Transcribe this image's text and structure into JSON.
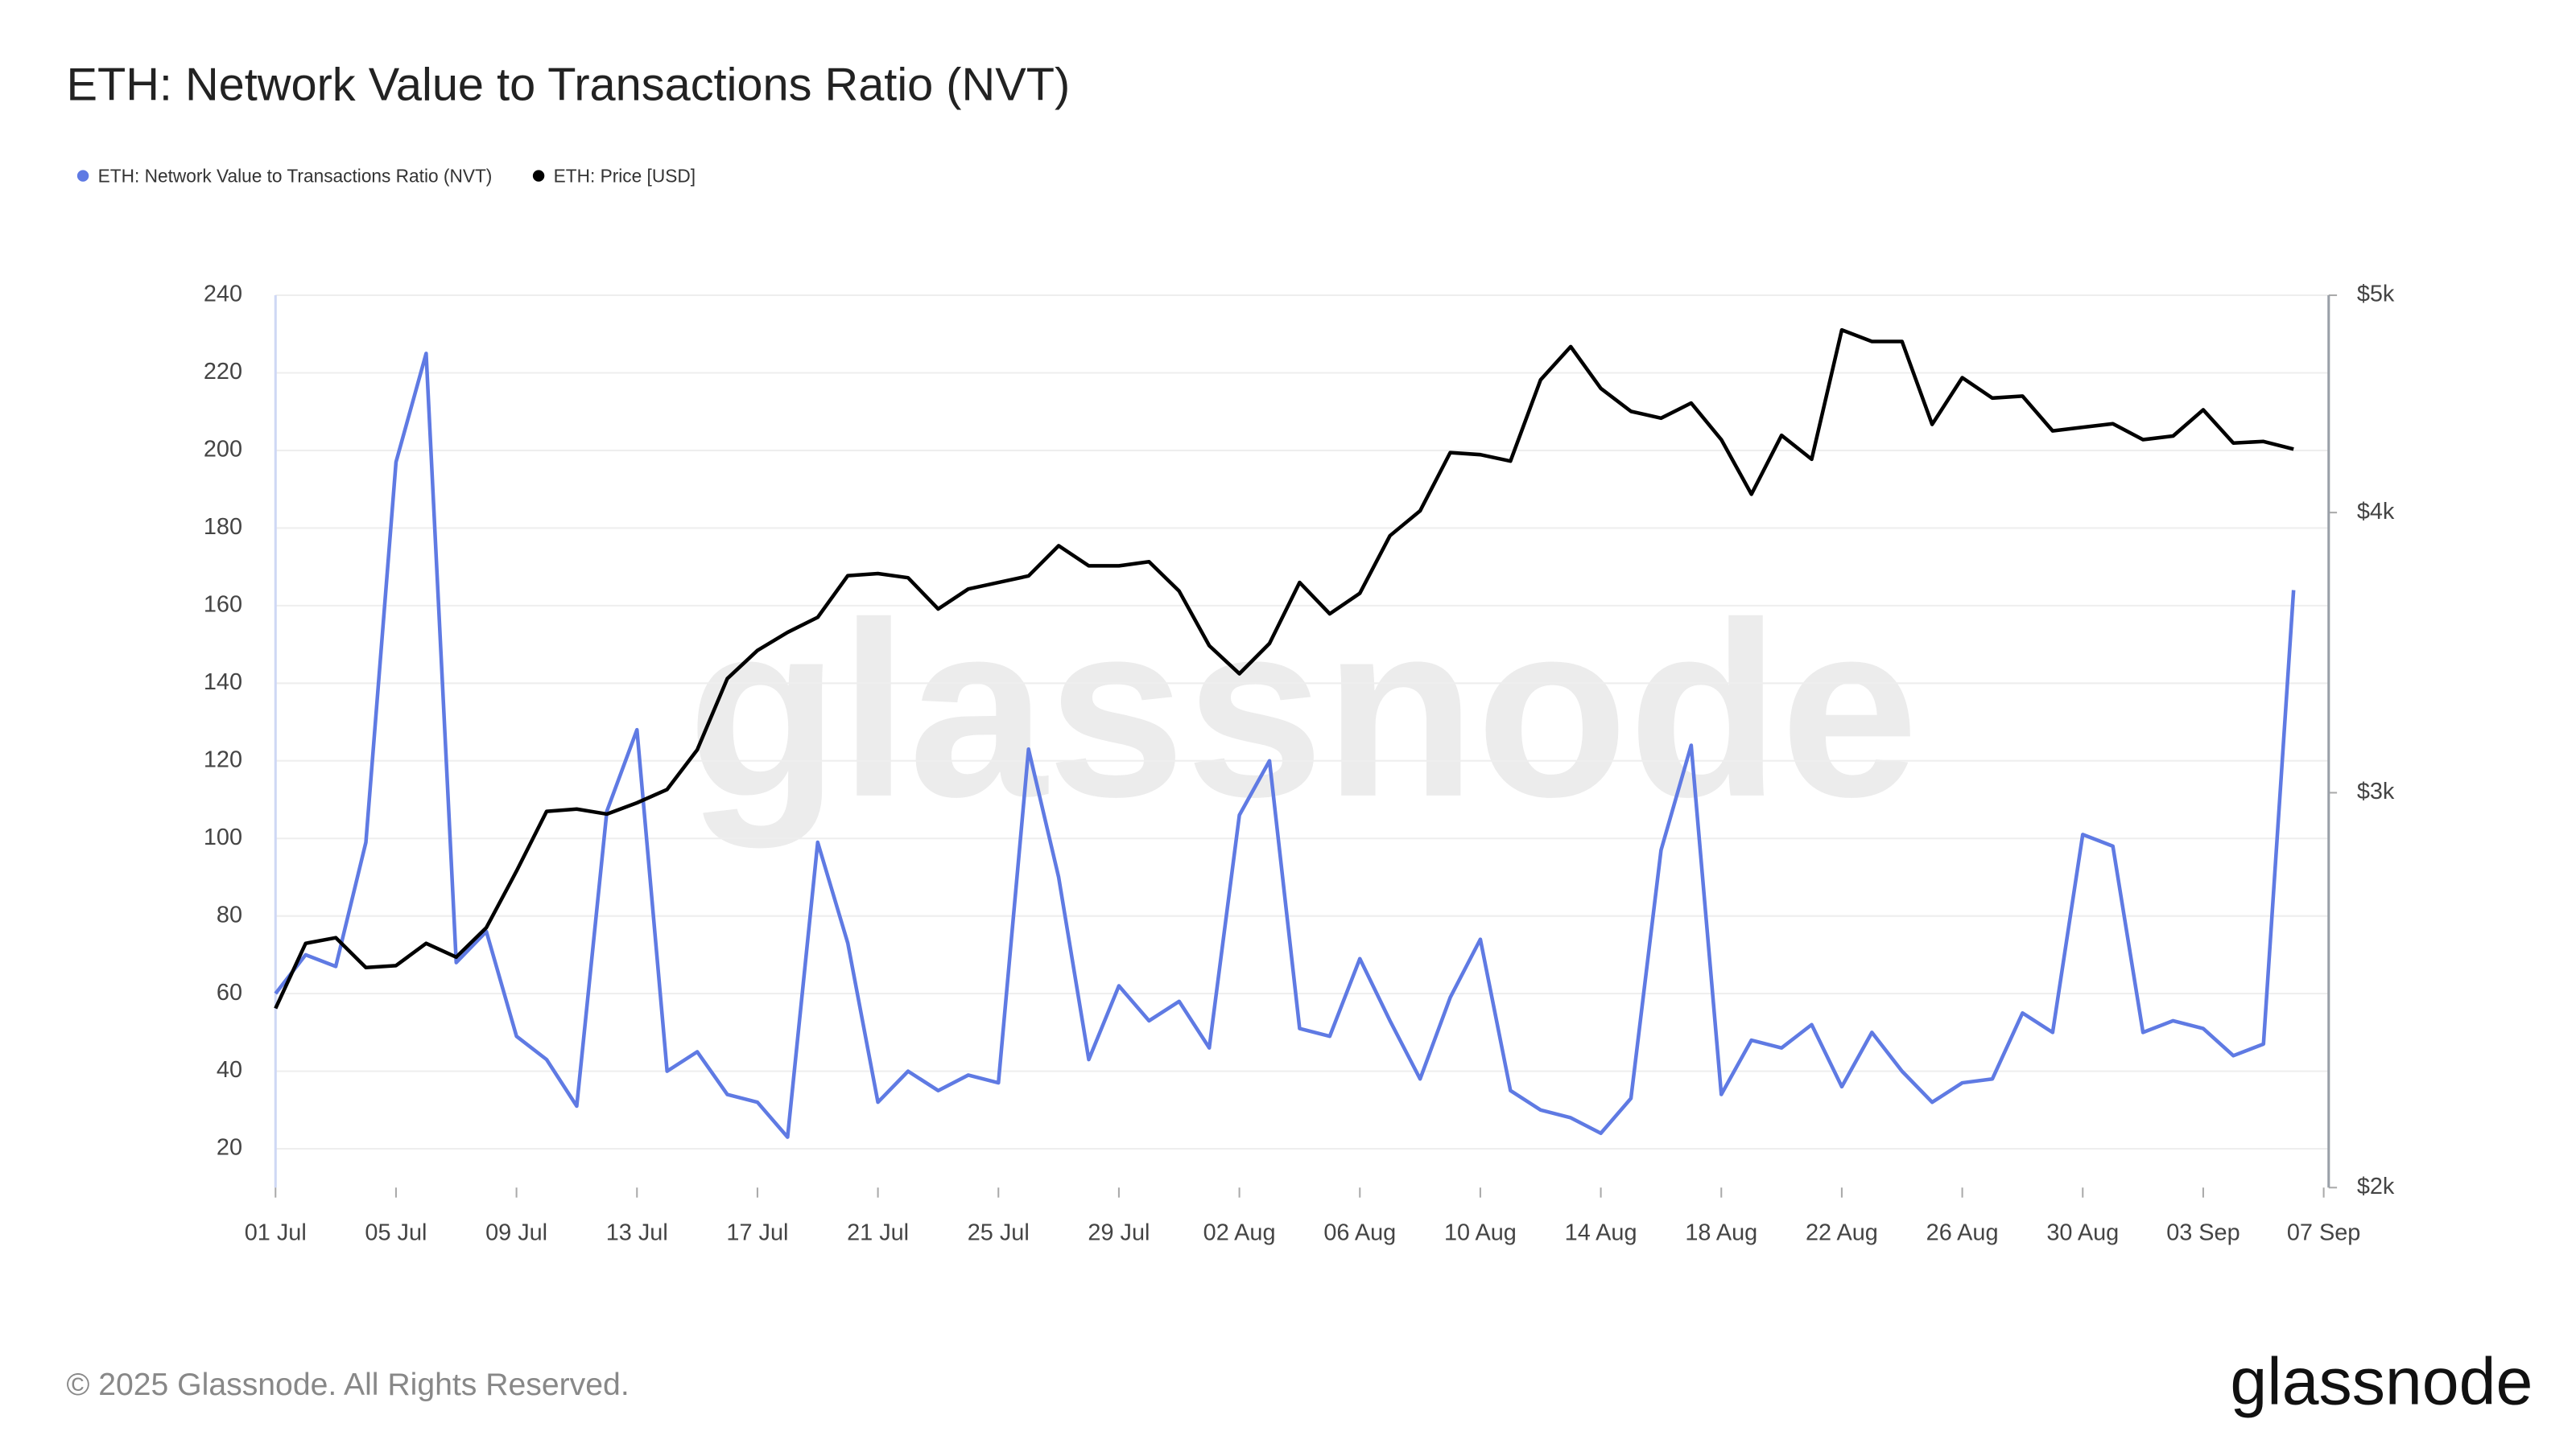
{
  "chart_data": {
    "type": "line",
    "title": "ETH: Network Value to Transactions Ratio (NVT)",
    "watermark": "glassnode",
    "x": [
      "01 Jul",
      "02 Jul",
      "03 Jul",
      "04 Jul",
      "05 Jul",
      "06 Jul",
      "07 Jul",
      "08 Jul",
      "09 Jul",
      "10 Jul",
      "11 Jul",
      "12 Jul",
      "13 Jul",
      "14 Jul",
      "15 Jul",
      "16 Jul",
      "17 Jul",
      "18 Jul",
      "19 Jul",
      "20 Jul",
      "21 Jul",
      "22 Jul",
      "23 Jul",
      "24 Jul",
      "25 Jul",
      "26 Jul",
      "27 Jul",
      "28 Jul",
      "29 Jul",
      "30 Jul",
      "31 Jul",
      "01 Aug",
      "02 Aug",
      "03 Aug",
      "04 Aug",
      "05 Aug",
      "06 Aug",
      "07 Aug",
      "08 Aug",
      "09 Aug",
      "10 Aug",
      "11 Aug",
      "12 Aug",
      "13 Aug",
      "14 Aug",
      "15 Aug",
      "16 Aug",
      "17 Aug",
      "18 Aug",
      "19 Aug",
      "20 Aug",
      "21 Aug",
      "22 Aug",
      "23 Aug",
      "24 Aug",
      "25 Aug",
      "26 Aug",
      "27 Aug",
      "28 Aug",
      "29 Aug",
      "30 Aug",
      "31 Aug",
      "01 Sep",
      "02 Sep",
      "03 Sep",
      "04 Sep",
      "05 Sep",
      "06 Sep",
      "07 Sep"
    ],
    "xticks": [
      "01 Jul",
      "05 Jul",
      "09 Jul",
      "13 Jul",
      "17 Jul",
      "21 Jul",
      "25 Jul",
      "29 Jul",
      "02 Aug",
      "06 Aug",
      "10 Aug",
      "14 Aug",
      "18 Aug",
      "22 Aug",
      "26 Aug",
      "30 Aug",
      "03 Sep",
      "07 Sep"
    ],
    "ylim": [
      10,
      240
    ],
    "yticks": [
      20,
      40,
      60,
      80,
      100,
      120,
      140,
      160,
      180,
      200,
      220,
      240
    ],
    "y2lim": [
      2000,
      5000
    ],
    "y2scale": "log",
    "y2ticks": [
      {
        "value": 2000,
        "label": "$2k"
      },
      {
        "value": 3000,
        "label": "$3k"
      },
      {
        "value": 4000,
        "label": "$4k"
      },
      {
        "value": 5000,
        "label": "$5k"
      }
    ],
    "grid": true,
    "legend": "top-left",
    "series": [
      {
        "name": "ETH: Network Value to Transactions Ratio (NVT)",
        "color": "#5f7ae3",
        "axis": "y",
        "values": [
          60,
          70,
          67,
          99,
          197,
          225,
          68,
          76,
          49,
          43,
          31,
          107,
          128,
          40,
          45,
          34,
          32,
          23,
          99,
          73,
          32,
          40,
          35,
          39,
          37,
          123,
          90,
          43,
          62,
          53,
          58,
          46,
          106,
          120,
          51,
          49,
          69,
          53,
          38,
          59,
          74,
          35,
          30,
          28,
          24,
          33,
          97,
          124,
          34,
          48,
          46,
          52,
          36,
          50,
          40,
          32,
          37,
          38,
          55,
          50,
          101,
          98,
          50,
          53,
          51,
          44,
          47,
          164,
          null
        ]
      },
      {
        "name": "ETH: Price [USD]",
        "color": "#000000",
        "axis": "y2",
        "values": [
          2404,
          2570,
          2585,
          2507,
          2512,
          2570,
          2534,
          2612,
          2768,
          2943,
          2950,
          2935,
          2969,
          3010,
          3135,
          3373,
          3472,
          3537,
          3592,
          3749,
          3757,
          3741,
          3623,
          3698,
          3723,
          3748,
          3866,
          3787,
          3787,
          3803,
          3690,
          3489,
          3390,
          3497,
          3723,
          3605,
          3682,
          3906,
          4007,
          4254,
          4245,
          4217,
          4584,
          4743,
          4544,
          4438,
          4407,
          4476,
          4311,
          4076,
          4330,
          4225,
          4825,
          4768,
          4768,
          4379,
          4594,
          4499,
          4508,
          4350,
          4366,
          4382,
          4311,
          4327,
          4445,
          4296,
          4303,
          4269,
          null
        ]
      }
    ]
  },
  "footer": {
    "copyright": "© 2025 Glassnode. All Rights Reserved.",
    "logo": "glassnode"
  }
}
